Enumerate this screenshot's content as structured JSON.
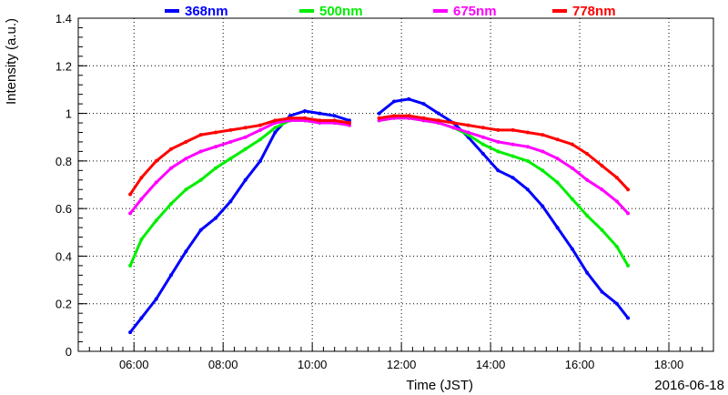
{
  "chart_data": {
    "type": "scatter",
    "xlabel": "Time (JST)",
    "ylabel": "Intensity (a.u.)",
    "date_label": "2016-06-18",
    "xlim": [
      "04:45",
      "19:00"
    ],
    "ylim": [
      0,
      1.4
    ],
    "grid": true,
    "legend_position": "top",
    "x_ticks": [
      "06:00",
      "08:00",
      "10:00",
      "12:00",
      "14:00",
      "16:00",
      "18:00"
    ],
    "y_ticks": [
      "0",
      "0.2",
      "0.4",
      "0.6",
      "0.8",
      "1",
      "1.2",
      "1.4"
    ],
    "series": [
      {
        "name": "368nm",
        "color": "#0000ff",
        "points": [
          [
            "05:55",
            0.08
          ],
          [
            "06:10",
            0.14
          ],
          [
            "06:30",
            0.22
          ],
          [
            "06:50",
            0.32
          ],
          [
            "07:10",
            0.42
          ],
          [
            "07:30",
            0.51
          ],
          [
            "07:50",
            0.56
          ],
          [
            "08:10",
            0.63
          ],
          [
            "08:30",
            0.72
          ],
          [
            "08:50",
            0.8
          ],
          [
            "09:10",
            0.92
          ],
          [
            "09:30",
            0.99
          ],
          [
            "09:50",
            1.01
          ],
          [
            "10:10",
            1.0
          ],
          [
            "10:30",
            0.99
          ],
          [
            "10:50",
            0.97
          ],
          [
            "11:30",
            1.0
          ],
          [
            "11:50",
            1.05
          ],
          [
            "12:10",
            1.06
          ],
          [
            "12:30",
            1.04
          ],
          [
            "12:50",
            1.0
          ],
          [
            "13:10",
            0.96
          ],
          [
            "13:30",
            0.9
          ],
          [
            "13:50",
            0.83
          ],
          [
            "14:10",
            0.76
          ],
          [
            "14:30",
            0.73
          ],
          [
            "14:50",
            0.68
          ],
          [
            "15:10",
            0.61
          ],
          [
            "15:30",
            0.52
          ],
          [
            "15:50",
            0.43
          ],
          [
            "16:10",
            0.33
          ],
          [
            "16:30",
            0.25
          ],
          [
            "16:50",
            0.2
          ],
          [
            "17:05",
            0.14
          ]
        ]
      },
      {
        "name": "500nm",
        "color": "#00ee00",
        "points": [
          [
            "05:55",
            0.36
          ],
          [
            "06:10",
            0.47
          ],
          [
            "06:30",
            0.55
          ],
          [
            "06:50",
            0.62
          ],
          [
            "07:10",
            0.68
          ],
          [
            "07:30",
            0.72
          ],
          [
            "07:50",
            0.77
          ],
          [
            "08:10",
            0.81
          ],
          [
            "08:30",
            0.85
          ],
          [
            "08:50",
            0.89
          ],
          [
            "09:10",
            0.94
          ],
          [
            "09:30",
            0.97
          ],
          [
            "09:50",
            0.97
          ],
          [
            "10:10",
            0.96
          ],
          [
            "10:30",
            0.96
          ],
          [
            "10:50",
            0.95
          ],
          [
            "11:30",
            0.97
          ],
          [
            "11:50",
            0.98
          ],
          [
            "12:10",
            0.98
          ],
          [
            "12:30",
            0.97
          ],
          [
            "12:50",
            0.96
          ],
          [
            "13:10",
            0.94
          ],
          [
            "13:30",
            0.91
          ],
          [
            "13:50",
            0.87
          ],
          [
            "14:10",
            0.84
          ],
          [
            "14:30",
            0.82
          ],
          [
            "14:50",
            0.8
          ],
          [
            "15:10",
            0.76
          ],
          [
            "15:30",
            0.71
          ],
          [
            "15:50",
            0.64
          ],
          [
            "16:10",
            0.57
          ],
          [
            "16:30",
            0.51
          ],
          [
            "16:50",
            0.44
          ],
          [
            "17:05",
            0.36
          ]
        ]
      },
      {
        "name": "675nm",
        "color": "#ff00ff",
        "points": [
          [
            "05:55",
            0.58
          ],
          [
            "06:10",
            0.64
          ],
          [
            "06:30",
            0.71
          ],
          [
            "06:50",
            0.77
          ],
          [
            "07:10",
            0.81
          ],
          [
            "07:30",
            0.84
          ],
          [
            "07:50",
            0.86
          ],
          [
            "08:10",
            0.88
          ],
          [
            "08:30",
            0.9
          ],
          [
            "08:50",
            0.93
          ],
          [
            "09:10",
            0.96
          ],
          [
            "09:30",
            0.97
          ],
          [
            "09:50",
            0.97
          ],
          [
            "10:10",
            0.96
          ],
          [
            "10:30",
            0.96
          ],
          [
            "10:50",
            0.95
          ],
          [
            "11:30",
            0.97
          ],
          [
            "11:50",
            0.98
          ],
          [
            "12:10",
            0.98
          ],
          [
            "12:30",
            0.97
          ],
          [
            "12:50",
            0.96
          ],
          [
            "13:10",
            0.94
          ],
          [
            "13:30",
            0.92
          ],
          [
            "13:50",
            0.9
          ],
          [
            "14:10",
            0.88
          ],
          [
            "14:30",
            0.87
          ],
          [
            "14:50",
            0.86
          ],
          [
            "15:10",
            0.84
          ],
          [
            "15:30",
            0.81
          ],
          [
            "15:50",
            0.77
          ],
          [
            "16:10",
            0.72
          ],
          [
            "16:30",
            0.68
          ],
          [
            "16:50",
            0.63
          ],
          [
            "17:05",
            0.58
          ]
        ]
      },
      {
        "name": "778nm",
        "color": "#ff0000",
        "points": [
          [
            "05:55",
            0.66
          ],
          [
            "06:10",
            0.73
          ],
          [
            "06:30",
            0.8
          ],
          [
            "06:50",
            0.85
          ],
          [
            "07:10",
            0.88
          ],
          [
            "07:30",
            0.91
          ],
          [
            "07:50",
            0.92
          ],
          [
            "08:10",
            0.93
          ],
          [
            "08:30",
            0.94
          ],
          [
            "08:50",
            0.95
          ],
          [
            "09:10",
            0.97
          ],
          [
            "09:30",
            0.98
          ],
          [
            "09:50",
            0.98
          ],
          [
            "10:10",
            0.97
          ],
          [
            "10:30",
            0.97
          ],
          [
            "10:50",
            0.96
          ],
          [
            "11:30",
            0.98
          ],
          [
            "11:50",
            0.99
          ],
          [
            "12:10",
            0.99
          ],
          [
            "12:30",
            0.98
          ],
          [
            "12:50",
            0.97
          ],
          [
            "13:10",
            0.96
          ],
          [
            "13:30",
            0.95
          ],
          [
            "13:50",
            0.94
          ],
          [
            "14:10",
            0.93
          ],
          [
            "14:30",
            0.93
          ],
          [
            "14:50",
            0.92
          ],
          [
            "15:10",
            0.91
          ],
          [
            "15:30",
            0.89
          ],
          [
            "15:50",
            0.87
          ],
          [
            "16:10",
            0.83
          ],
          [
            "16:30",
            0.78
          ],
          [
            "16:50",
            0.73
          ],
          [
            "17:05",
            0.68
          ]
        ]
      }
    ]
  }
}
